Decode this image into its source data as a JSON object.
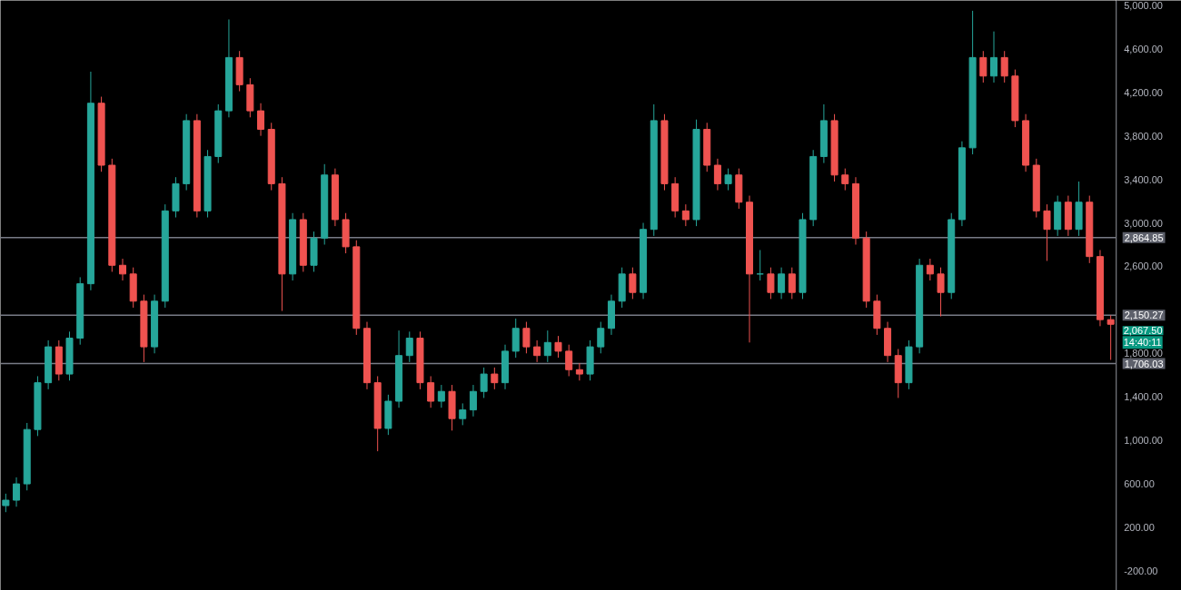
{
  "chart_data": {
    "type": "candlestick",
    "categories": [
      null,
      null,
      null,
      null,
      null,
      null,
      null,
      null,
      null,
      null,
      null,
      null,
      null,
      null,
      null,
      null,
      null,
      null,
      null,
      null,
      null,
      null,
      null,
      null,
      null,
      null,
      null,
      null,
      null,
      null,
      null,
      null,
      null,
      null,
      null,
      null,
      null,
      null,
      null,
      null,
      null,
      null,
      null,
      null,
      null,
      null,
      null,
      null,
      null,
      null,
      null,
      null,
      null,
      null,
      null,
      null,
      null,
      null,
      null,
      null,
      null,
      null,
      null,
      null,
      null,
      null,
      null,
      null,
      null,
      null,
      null,
      null,
      null,
      null,
      null,
      null,
      null,
      null,
      null,
      null,
      null,
      null,
      null,
      null,
      null,
      null,
      null,
      null,
      null,
      null,
      null,
      null,
      null,
      null,
      null,
      null,
      null,
      null,
      null,
      null,
      null,
      null,
      null,
      null,
      null
    ],
    "ohlc": [
      [
        400,
        510,
        340,
        450
      ],
      [
        450,
        660,
        390,
        600
      ],
      [
        600,
        1160,
        540,
        1100
      ],
      [
        1100,
        1590,
        1040,
        1530
      ],
      [
        1530,
        1920,
        1470,
        1860
      ],
      [
        1860,
        1920,
        1550,
        1610
      ],
      [
        1610,
        2000,
        1550,
        1940
      ],
      [
        1940,
        2500,
        1880,
        2440
      ],
      [
        2440,
        4390,
        2380,
        4100
      ],
      [
        4100,
        4160,
        3470,
        3530
      ],
      [
        3530,
        3590,
        2550,
        2610
      ],
      [
        2610,
        2670,
        2470,
        2530
      ],
      [
        2530,
        2590,
        2220,
        2280
      ],
      [
        2280,
        2340,
        1720,
        1860
      ],
      [
        1860,
        2340,
        1800,
        2280
      ],
      [
        2280,
        3170,
        2220,
        3110
      ],
      [
        3110,
        3420,
        3050,
        3360
      ],
      [
        3360,
        4000,
        3300,
        3940
      ],
      [
        3940,
        4000,
        3050,
        3110
      ],
      [
        3110,
        3670,
        3050,
        3610
      ],
      [
        3610,
        4090,
        3550,
        4030
      ],
      [
        4030,
        4870,
        3970,
        4520
      ],
      [
        4520,
        4580,
        4210,
        4270
      ],
      [
        4270,
        4330,
        3970,
        4030
      ],
      [
        4030,
        4100,
        3800,
        3860
      ],
      [
        3860,
        3920,
        3300,
        3360
      ],
      [
        3360,
        3420,
        2190,
        2530
      ],
      [
        2530,
        3090,
        2470,
        3030
      ],
      [
        3030,
        3090,
        2550,
        2610
      ],
      [
        2610,
        2920,
        2550,
        2860
      ],
      [
        2860,
        3540,
        2800,
        3440
      ],
      [
        3440,
        3500,
        2970,
        3030
      ],
      [
        3030,
        3090,
        2720,
        2780
      ],
      [
        2780,
        2840,
        1970,
        2030
      ],
      [
        2030,
        2090,
        1470,
        1530
      ],
      [
        1530,
        1590,
        900,
        1110
      ],
      [
        1110,
        1420,
        1050,
        1360
      ],
      [
        1360,
        2010,
        1300,
        1780
      ],
      [
        1780,
        2000,
        1720,
        1940
      ],
      [
        1940,
        2000,
        1470,
        1530
      ],
      [
        1530,
        1590,
        1300,
        1360
      ],
      [
        1360,
        1510,
        1300,
        1450
      ],
      [
        1450,
        1510,
        1090,
        1200
      ],
      [
        1200,
        1340,
        1140,
        1280
      ],
      [
        1280,
        1510,
        1220,
        1450
      ],
      [
        1450,
        1670,
        1390,
        1610
      ],
      [
        1610,
        1670,
        1470,
        1530
      ],
      [
        1530,
        1880,
        1470,
        1820
      ],
      [
        1820,
        2120,
        1760,
        2030
      ],
      [
        2030,
        2090,
        1800,
        1860
      ],
      [
        1860,
        1920,
        1720,
        1780
      ],
      [
        1780,
        2010,
        1720,
        1900
      ],
      [
        1900,
        1960,
        1760,
        1820
      ],
      [
        1820,
        1880,
        1590,
        1650
      ],
      [
        1650,
        1710,
        1550,
        1610
      ],
      [
        1610,
        1920,
        1550,
        1860
      ],
      [
        1860,
        2090,
        1800,
        2030
      ],
      [
        2030,
        2340,
        1970,
        2280
      ],
      [
        2280,
        2590,
        2220,
        2530
      ],
      [
        2530,
        2590,
        2300,
        2360
      ],
      [
        2360,
        3000,
        2300,
        2940
      ],
      [
        2940,
        4090,
        2880,
        3940
      ],
      [
        3940,
        4000,
        3300,
        3360
      ],
      [
        3360,
        3420,
        3050,
        3110
      ],
      [
        3110,
        3170,
        2970,
        3030
      ],
      [
        3030,
        3950,
        2970,
        3860
      ],
      [
        3860,
        3920,
        3470,
        3530
      ],
      [
        3530,
        3590,
        3300,
        3360
      ],
      [
        3360,
        3500,
        3300,
        3440
      ],
      [
        3440,
        3500,
        3130,
        3190
      ],
      [
        3190,
        3250,
        1900,
        2530
      ],
      [
        2530,
        2750,
        2470,
        2530
      ],
      [
        2530,
        2590,
        2300,
        2360
      ],
      [
        2360,
        2590,
        2300,
        2530
      ],
      [
        2530,
        2590,
        2300,
        2360
      ],
      [
        2360,
        3090,
        2300,
        3030
      ],
      [
        3030,
        3670,
        2970,
        3610
      ],
      [
        3610,
        4090,
        3550,
        3940
      ],
      [
        3940,
        4000,
        3380,
        3440
      ],
      [
        3440,
        3500,
        3300,
        3360
      ],
      [
        3360,
        3420,
        2800,
        2860
      ],
      [
        2860,
        2920,
        2220,
        2280
      ],
      [
        2280,
        2340,
        1970,
        2030
      ],
      [
        2030,
        2090,
        1720,
        1780
      ],
      [
        1780,
        1840,
        1390,
        1530
      ],
      [
        1530,
        1920,
        1470,
        1860
      ],
      [
        1860,
        2670,
        1800,
        2610
      ],
      [
        2610,
        2670,
        2470,
        2530
      ],
      [
        2530,
        2590,
        2140,
        2360
      ],
      [
        2360,
        3090,
        2300,
        3030
      ],
      [
        3030,
        3750,
        2970,
        3690
      ],
      [
        3690,
        4950,
        3630,
        4520
      ],
      [
        4520,
        4580,
        4290,
        4350
      ],
      [
        4350,
        4760,
        4290,
        4520
      ],
      [
        4520,
        4580,
        4290,
        4350
      ],
      [
        4350,
        4410,
        3880,
        3940
      ],
      [
        3940,
        4000,
        3470,
        3530
      ],
      [
        3530,
        3590,
        3050,
        3110
      ],
      [
        3110,
        3170,
        2650,
        2940
      ],
      [
        2940,
        3250,
        2880,
        3190
      ],
      [
        3190,
        3250,
        2880,
        2940
      ],
      [
        2940,
        3380,
        2880,
        3190
      ],
      [
        3190,
        3250,
        2630,
        2690
      ],
      [
        2690,
        2750,
        2050,
        2110
      ],
      [
        2110,
        2150,
        1740,
        2067.5
      ]
    ],
    "colors": [
      "#26a69a",
      "#26a69a",
      "#26a69a",
      "#26a69a",
      "#26a69a",
      "#ef5350",
      "#26a69a",
      "#26a69a",
      "#26a69a",
      "#ef5350",
      "#ef5350",
      "#ef5350",
      "#ef5350",
      "#ef5350",
      "#26a69a",
      "#26a69a",
      "#26a69a",
      "#26a69a",
      "#ef5350",
      "#26a69a",
      "#26a69a",
      "#26a69a",
      "#ef5350",
      "#ef5350",
      "#ef5350",
      "#ef5350",
      "#ef5350",
      "#26a69a",
      "#ef5350",
      "#26a69a",
      "#26a69a",
      "#ef5350",
      "#ef5350",
      "#ef5350",
      "#ef5350",
      "#ef5350",
      "#26a69a",
      "#26a69a",
      "#26a69a",
      "#ef5350",
      "#ef5350",
      "#26a69a",
      "#ef5350",
      "#26a69a",
      "#26a69a",
      "#26a69a",
      "#ef5350",
      "#26a69a",
      "#26a69a",
      "#ef5350",
      "#ef5350",
      "#26a69a",
      "#ef5350",
      "#ef5350",
      "#ef5350",
      "#26a69a",
      "#26a69a",
      "#26a69a",
      "#26a69a",
      "#ef5350",
      "#26a69a",
      "#26a69a",
      "#ef5350",
      "#ef5350",
      "#ef5350",
      "#26a69a",
      "#ef5350",
      "#ef5350",
      "#26a69a",
      "#ef5350",
      "#ef5350",
      "#26a69a",
      "#ef5350",
      "#26a69a",
      "#ef5350",
      "#26a69a",
      "#26a69a",
      "#26a69a",
      "#ef5350",
      "#ef5350",
      "#ef5350",
      "#ef5350",
      "#ef5350",
      "#ef5350",
      "#ef5350",
      "#26a69a",
      "#26a69a",
      "#ef5350",
      "#ef5350",
      "#26a69a",
      "#26a69a",
      "#26a69a",
      "#ef5350",
      "#26a69a",
      "#ef5350",
      "#ef5350",
      "#ef5350",
      "#ef5350",
      "#ef5350",
      "#26a69a",
      "#ef5350",
      "#26a69a",
      "#ef5350",
      "#ef5350",
      "#ef5350"
    ],
    "ylim": [
      -380,
      5045
    ],
    "yticks": [
      {
        "value": -200,
        "label": "-200.00"
      },
      {
        "value": 200,
        "label": "200.00"
      },
      {
        "value": 600,
        "label": "600.00"
      },
      {
        "value": 1000,
        "label": "1,000.00"
      },
      {
        "value": 1400,
        "label": "1,400.00"
      },
      {
        "value": 1800,
        "label": "1,800.00"
      },
      {
        "value": 2600,
        "label": "2,600.00"
      },
      {
        "value": 3000,
        "label": "3,000.00"
      },
      {
        "value": 3400,
        "label": "3,400.00"
      },
      {
        "value": 3800,
        "label": "3,800.00"
      },
      {
        "value": 4200,
        "label": "4,200.00"
      },
      {
        "value": 4600,
        "label": "4,600.00"
      },
      {
        "value": 5000,
        "label": "5,000.00"
      }
    ],
    "ref_lines": [
      {
        "axis": "y",
        "value": 2864.85,
        "label": "2,864.85",
        "color": "#787b86"
      },
      {
        "axis": "y",
        "value": 2150.27,
        "label": "2,150.27",
        "color": "#787b86"
      },
      {
        "axis": "y",
        "value": 1706.03,
        "label": "1,706.03",
        "color": "#787b86"
      }
    ],
    "annotations": [
      "2,067.50",
      "14:40:11"
    ],
    "grid": false,
    "tick_labels": "y"
  }
}
